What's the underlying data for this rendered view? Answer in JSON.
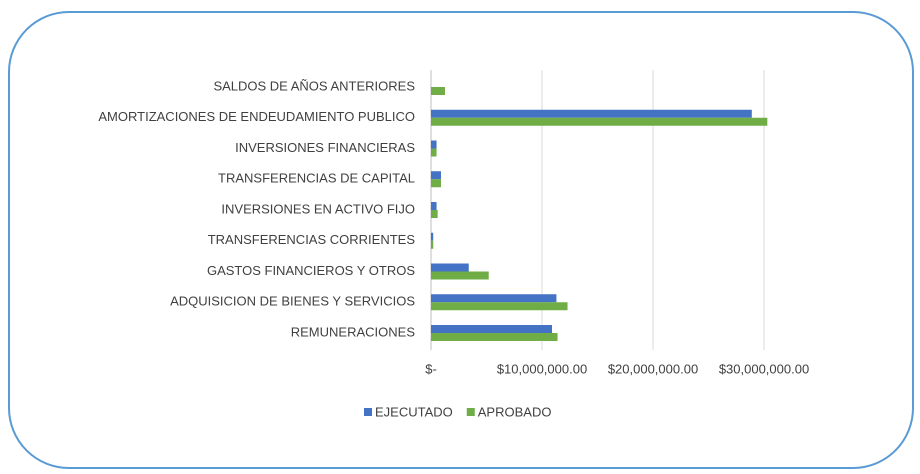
{
  "chart_data": {
    "type": "hbar",
    "categories": [
      "SALDOS DE AÑOS ANTERIORES",
      "AMORTIZACIONES DE ENDEUDAMIENTO PUBLICO",
      "INVERSIONES FINANCIERAS",
      "TRANSFERENCIAS DE CAPITAL",
      "INVERSIONES EN ACTIVO FIJO",
      "TRANSFERENCIAS CORRIENTES",
      "GASTOS FINANCIEROS Y OTROS",
      "ADQUISICION DE BIENES Y SERVICIOS",
      "REMUNERACIONES"
    ],
    "series": [
      {
        "name": "EJECUTADO",
        "color": "#4472c4",
        "values": [
          0,
          28900000,
          500000,
          900000,
          500000,
          200000,
          3400000,
          11300000,
          10900000
        ]
      },
      {
        "name": "APROBADO",
        "color": "#70ad47",
        "values": [
          1260000,
          30300000,
          500000,
          900000,
          600000,
          200000,
          5200000,
          12300000,
          11400000
        ]
      }
    ],
    "xlim": [
      0,
      35000000
    ],
    "xticks": [
      {
        "value": 0,
        "label": "$-"
      },
      {
        "value": 10000000,
        "label": "$10,000,000.00"
      },
      {
        "value": 20000000,
        "label": "$20,000,000.00"
      },
      {
        "value": 30000000,
        "label": "$30,000,000.00"
      }
    ],
    "grid": true,
    "legend": "bottom"
  }
}
